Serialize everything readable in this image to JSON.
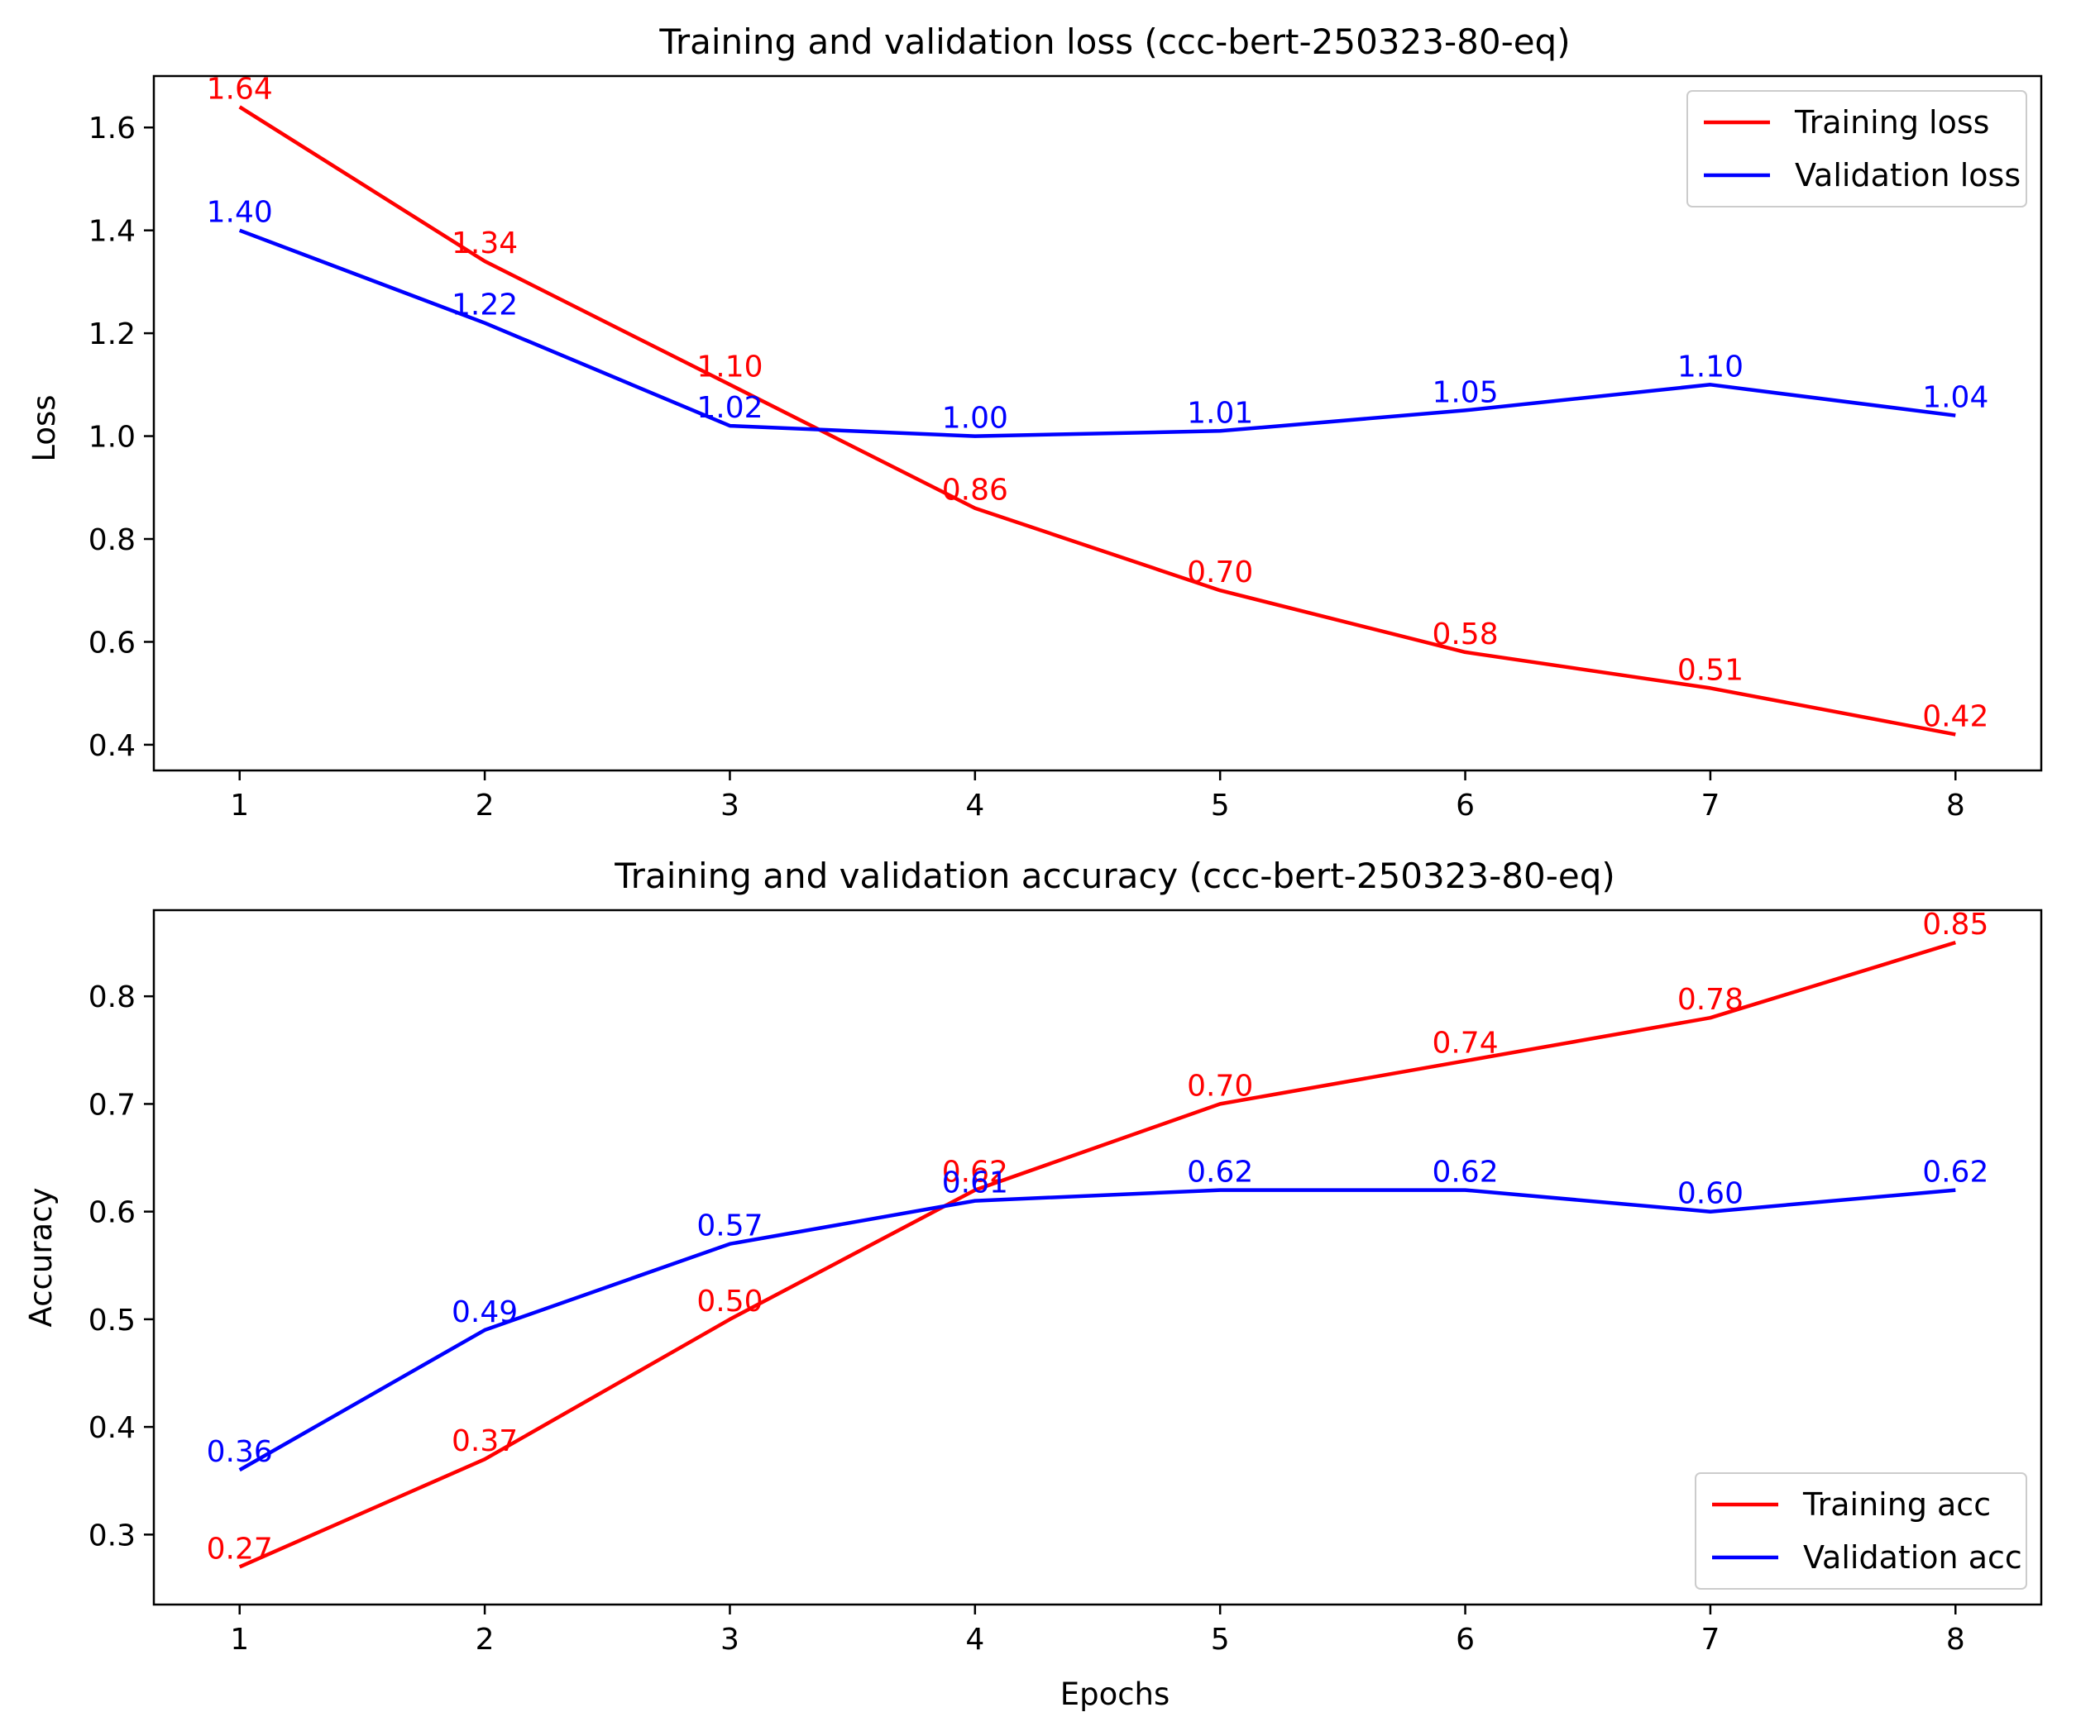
{
  "chart_data": [
    {
      "type": "line",
      "title": "Training and validation loss (ccc-bert-250323-80-eq)",
      "xlabel": "",
      "ylabel": "Loss",
      "x": [
        1,
        2,
        3,
        4,
        5,
        6,
        7,
        8
      ],
      "x_ticks": [
        "1",
        "2",
        "3",
        "4",
        "5",
        "6",
        "7",
        "8"
      ],
      "ylim": [
        0.35,
        1.7
      ],
      "y_ticks": [
        0.4,
        0.6,
        0.8,
        1.0,
        1.2,
        1.4,
        1.6
      ],
      "y_tick_labels": [
        "0.4",
        "0.6",
        "0.8",
        "1.0",
        "1.2",
        "1.4",
        "1.6"
      ],
      "grid": false,
      "legend_position": "top-right",
      "series": [
        {
          "name": "Training loss",
          "color": "#ff0000",
          "values": [
            1.64,
            1.34,
            1.1,
            0.86,
            0.7,
            0.58,
            0.51,
            0.42
          ],
          "labels": [
            "1.64",
            "1.34",
            "1.10",
            "0.86",
            "0.70",
            "0.58",
            "0.51",
            "0.42"
          ]
        },
        {
          "name": "Validation loss",
          "color": "#0000ff",
          "values": [
            1.4,
            1.22,
            1.02,
            1.0,
            1.01,
            1.05,
            1.1,
            1.04
          ],
          "labels": [
            "1.40",
            "1.22",
            "1.02",
            "1.00",
            "1.01",
            "1.05",
            "1.10",
            "1.04"
          ]
        }
      ]
    },
    {
      "type": "line",
      "title": "Training and validation accuracy (ccc-bert-250323-80-eq)",
      "xlabel": "Epochs",
      "ylabel": "Accuracy",
      "x": [
        1,
        2,
        3,
        4,
        5,
        6,
        7,
        8
      ],
      "x_ticks": [
        "1",
        "2",
        "3",
        "4",
        "5",
        "6",
        "7",
        "8"
      ],
      "ylim": [
        0.235,
        0.88
      ],
      "y_ticks": [
        0.3,
        0.4,
        0.5,
        0.6,
        0.7,
        0.8
      ],
      "y_tick_labels": [
        "0.3",
        "0.4",
        "0.5",
        "0.6",
        "0.7",
        "0.8"
      ],
      "grid": false,
      "legend_position": "bottom-right",
      "series": [
        {
          "name": "Training acc",
          "color": "#ff0000",
          "values": [
            0.27,
            0.37,
            0.5,
            0.62,
            0.7,
            0.74,
            0.78,
            0.85
          ],
          "labels": [
            "0.27",
            "0.37",
            "0.50",
            "0.62",
            "0.70",
            "0.74",
            "0.78",
            "0.85"
          ]
        },
        {
          "name": "Validation acc",
          "color": "#0000ff",
          "values": [
            0.36,
            0.49,
            0.57,
            0.61,
            0.62,
            0.62,
            0.6,
            0.62
          ],
          "labels": [
            "0.36",
            "0.49",
            "0.57",
            "0.61",
            "0.62",
            "0.62",
            "0.60",
            "0.62"
          ]
        }
      ]
    }
  ]
}
